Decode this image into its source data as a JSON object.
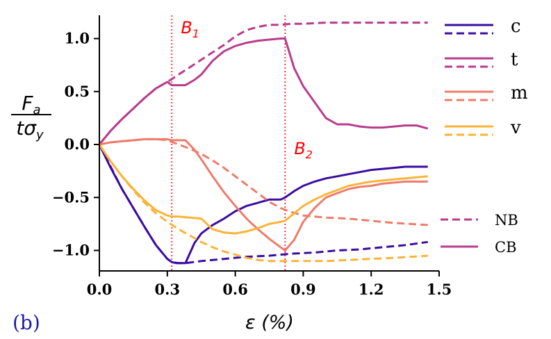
{
  "chart_data": {
    "type": "line",
    "panel_label": "(b)",
    "xlabel": "ε (%)",
    "ylabel": "F_a / tσ_y",
    "xlim": [
      0.0,
      1.5
    ],
    "ylim": [
      -1.2,
      1.2
    ],
    "xticks": [
      "0.0",
      "0.3",
      "0.6",
      "0.9",
      "1.2",
      "1.5"
    ],
    "yticks": [
      "1.0",
      "0.5",
      "0.0",
      "−0.5",
      "−1.0"
    ],
    "xtick_values": [
      0.0,
      0.3,
      0.6,
      0.9,
      1.2,
      1.5
    ],
    "ytick_values": [
      1.0,
      0.5,
      0.0,
      -0.5,
      -1.0
    ],
    "markers": [
      {
        "label": "B",
        "sub": "1",
        "x": 0.32,
        "color": "#ff0000"
      },
      {
        "label": "B",
        "sub": "2",
        "x": 0.82,
        "color": "#ff0000"
      }
    ],
    "series": [
      {
        "name": "c",
        "variant": "CB",
        "color": "#3a0ca3",
        "x": [
          0,
          0.05,
          0.1,
          0.15,
          0.2,
          0.25,
          0.3,
          0.32,
          0.34,
          0.38,
          0.42,
          0.45,
          0.5,
          0.55,
          0.6,
          0.65,
          0.7,
          0.75,
          0.8,
          0.82,
          0.86,
          0.9,
          0.95,
          1.0,
          1.05,
          1.1,
          1.15,
          1.2,
          1.25,
          1.3,
          1.35,
          1.4,
          1.45
        ],
        "y": [
          0,
          -0.22,
          -0.42,
          -0.6,
          -0.78,
          -0.95,
          -1.08,
          -1.11,
          -1.12,
          -1.12,
          -0.93,
          -0.84,
          -0.76,
          -0.7,
          -0.63,
          -0.58,
          -0.55,
          -0.52,
          -0.52,
          -0.5,
          -0.44,
          -0.39,
          -0.35,
          -0.32,
          -0.3,
          -0.28,
          -0.26,
          -0.24,
          -0.23,
          -0.22,
          -0.21,
          -0.21,
          -0.21
        ]
      },
      {
        "name": "c",
        "variant": "NB",
        "color": "#3a0ca3",
        "x": [
          0,
          0.05,
          0.1,
          0.15,
          0.2,
          0.25,
          0.3,
          0.32,
          0.35,
          0.38,
          0.45,
          0.55,
          0.65,
          0.75,
          0.85,
          0.95,
          1.05,
          1.15,
          1.25,
          1.35,
          1.45
        ],
        "y": [
          0,
          -0.21,
          -0.42,
          -0.6,
          -0.78,
          -0.95,
          -1.08,
          -1.11,
          -1.12,
          -1.12,
          -1.1,
          -1.08,
          -1.06,
          -1.05,
          -1.03,
          -1.02,
          -1.0,
          -0.99,
          -0.97,
          -0.95,
          -0.92
        ]
      },
      {
        "name": "t",
        "variant": "CB",
        "color": "#b83b8c",
        "x": [
          0,
          0.05,
          0.1,
          0.15,
          0.2,
          0.25,
          0.3,
          0.32,
          0.35,
          0.38,
          0.42,
          0.45,
          0.5,
          0.55,
          0.6,
          0.65,
          0.7,
          0.75,
          0.8,
          0.82,
          0.86,
          0.9,
          0.95,
          1.0,
          1.05,
          1.1,
          1.15,
          1.2,
          1.25,
          1.3,
          1.35,
          1.4,
          1.45
        ],
        "y": [
          0,
          0.13,
          0.24,
          0.34,
          0.44,
          0.53,
          0.59,
          0.56,
          0.56,
          0.56,
          0.61,
          0.66,
          0.79,
          0.88,
          0.93,
          0.96,
          0.98,
          0.99,
          1.0,
          1.0,
          0.72,
          0.55,
          0.4,
          0.25,
          0.19,
          0.19,
          0.17,
          0.16,
          0.16,
          0.17,
          0.18,
          0.18,
          0.15
        ]
      },
      {
        "name": "t",
        "variant": "NB",
        "color": "#b83b8c",
        "x": [
          0,
          0.05,
          0.1,
          0.15,
          0.2,
          0.25,
          0.3,
          0.35,
          0.4,
          0.45,
          0.5,
          0.55,
          0.6,
          0.65,
          0.7,
          0.75,
          0.8,
          0.85,
          0.9,
          1.0,
          1.1,
          1.2,
          1.3,
          1.4,
          1.45
        ],
        "y": [
          0,
          0.13,
          0.24,
          0.34,
          0.44,
          0.53,
          0.59,
          0.66,
          0.73,
          0.8,
          0.87,
          0.94,
          1.02,
          1.08,
          1.11,
          1.13,
          1.13,
          1.14,
          1.14,
          1.15,
          1.15,
          1.15,
          1.15,
          1.15,
          1.15
        ]
      },
      {
        "name": "m",
        "variant": "CB",
        "color": "#ee7b6a",
        "x": [
          0,
          0.05,
          0.1,
          0.15,
          0.2,
          0.25,
          0.3,
          0.32,
          0.35,
          0.38,
          0.42,
          0.45,
          0.5,
          0.55,
          0.6,
          0.65,
          0.7,
          0.75,
          0.8,
          0.82,
          0.86,
          0.9,
          0.95,
          1.0,
          1.05,
          1.1,
          1.15,
          1.2,
          1.25,
          1.3,
          1.35,
          1.4,
          1.45
        ],
        "y": [
          0,
          0.02,
          0.03,
          0.04,
          0.05,
          0.05,
          0.05,
          0.04,
          0.04,
          0.04,
          -0.05,
          -0.14,
          -0.3,
          -0.45,
          -0.58,
          -0.7,
          -0.8,
          -0.89,
          -0.97,
          -1.0,
          -0.9,
          -0.73,
          -0.6,
          -0.5,
          -0.46,
          -0.42,
          -0.4,
          -0.39,
          -0.37,
          -0.36,
          -0.35,
          -0.35,
          -0.35
        ]
      },
      {
        "name": "m",
        "variant": "NB",
        "color": "#ee7b6a",
        "x": [
          0,
          0.05,
          0.1,
          0.15,
          0.2,
          0.25,
          0.3,
          0.35,
          0.4,
          0.45,
          0.5,
          0.55,
          0.6,
          0.65,
          0.7,
          0.75,
          0.8,
          0.85,
          0.9,
          0.95,
          1.0,
          1.1,
          1.2,
          1.3,
          1.45
        ],
        "y": [
          0,
          0.02,
          0.03,
          0.04,
          0.05,
          0.05,
          0.04,
          0.0,
          -0.04,
          -0.09,
          -0.15,
          -0.22,
          -0.3,
          -0.38,
          -0.46,
          -0.54,
          -0.6,
          -0.64,
          -0.67,
          -0.68,
          -0.69,
          -0.7,
          -0.72,
          -0.74,
          -0.76
        ]
      },
      {
        "name": "v",
        "variant": "CB",
        "color": "#fbb336",
        "x": [
          0,
          0.05,
          0.1,
          0.15,
          0.2,
          0.25,
          0.3,
          0.32,
          0.35,
          0.4,
          0.45,
          0.5,
          0.55,
          0.6,
          0.65,
          0.7,
          0.75,
          0.8,
          0.82,
          0.86,
          0.9,
          0.95,
          1.0,
          1.05,
          1.1,
          1.15,
          1.2,
          1.25,
          1.3,
          1.35,
          1.4,
          1.45
        ],
        "y": [
          0,
          -0.16,
          -0.3,
          -0.42,
          -0.53,
          -0.62,
          -0.67,
          -0.68,
          -0.68,
          -0.69,
          -0.7,
          -0.8,
          -0.83,
          -0.84,
          -0.82,
          -0.79,
          -0.75,
          -0.73,
          -0.72,
          -0.65,
          -0.58,
          -0.52,
          -0.47,
          -0.43,
          -0.39,
          -0.37,
          -0.35,
          -0.34,
          -0.33,
          -0.32,
          -0.31,
          -0.3
        ]
      },
      {
        "name": "v",
        "variant": "NB",
        "color": "#fbb336",
        "x": [
          0,
          0.05,
          0.1,
          0.15,
          0.2,
          0.25,
          0.3,
          0.35,
          0.4,
          0.45,
          0.5,
          0.55,
          0.6,
          0.65,
          0.7,
          0.75,
          0.8,
          0.85,
          0.9,
          1.0,
          1.1,
          1.2,
          1.3,
          1.45
        ],
        "y": [
          0,
          -0.16,
          -0.3,
          -0.43,
          -0.55,
          -0.65,
          -0.73,
          -0.8,
          -0.86,
          -0.92,
          -0.97,
          -1.01,
          -1.04,
          -1.07,
          -1.09,
          -1.1,
          -1.1,
          -1.1,
          -1.1,
          -1.1,
          -1.09,
          -1.08,
          -1.07,
          -1.05
        ]
      }
    ],
    "legend_lines": [
      {
        "label": "c",
        "color": "#3a0ca3"
      },
      {
        "label": "t",
        "color": "#b83b8c"
      },
      {
        "label": "m",
        "color": "#ee7b6a"
      },
      {
        "label": "v",
        "color": "#fbb336"
      }
    ],
    "legend_styles": [
      {
        "label": "NB",
        "style": "dashed",
        "color": "#b83b8c"
      },
      {
        "label": "CB",
        "style": "solid",
        "color": "#b83b8c"
      }
    ]
  }
}
